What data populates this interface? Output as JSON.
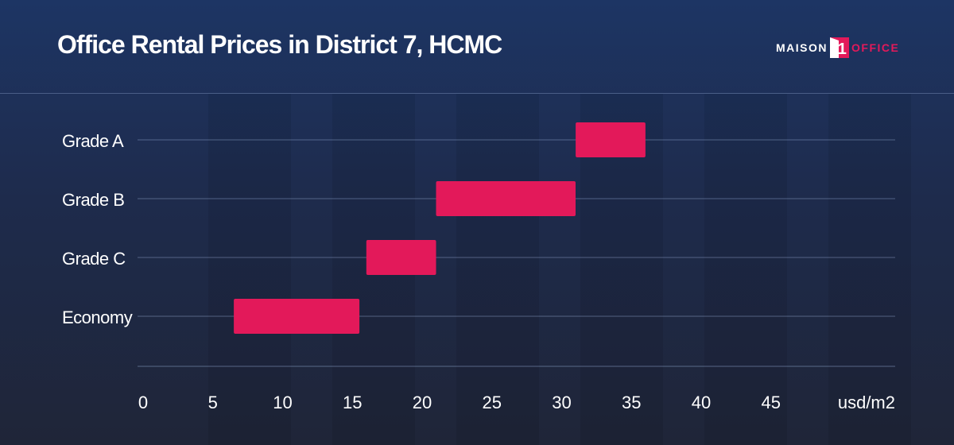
{
  "header": {
    "title": "Office Rental Prices in District 7, HCMC"
  },
  "logo": {
    "left_word": "MAISON",
    "right_word": "OFFICE",
    "mark_digit": "1",
    "accent_color": "#e3195a"
  },
  "chart_data": {
    "type": "bar",
    "orientation": "horizontal-range",
    "title": "Office Rental Prices in District 7, HCMC",
    "xlabel": "usd/m2",
    "ylabel": "",
    "xlim": [
      0,
      50
    ],
    "x_ticks": [
      0,
      5,
      10,
      15,
      20,
      25,
      30,
      35,
      40,
      45
    ],
    "categories": [
      "Grade A",
      "Grade B",
      "Grade C",
      "Economy"
    ],
    "ranges": [
      {
        "category": "Grade A",
        "min": 31,
        "max": 36
      },
      {
        "category": "Grade B",
        "min": 21,
        "max": 31
      },
      {
        "category": "Grade C",
        "min": 16,
        "max": 21
      },
      {
        "category": "Economy",
        "min": 6.5,
        "max": 15.5
      }
    ],
    "bar_color": "#e3195a",
    "grid": true,
    "legend": "none"
  }
}
